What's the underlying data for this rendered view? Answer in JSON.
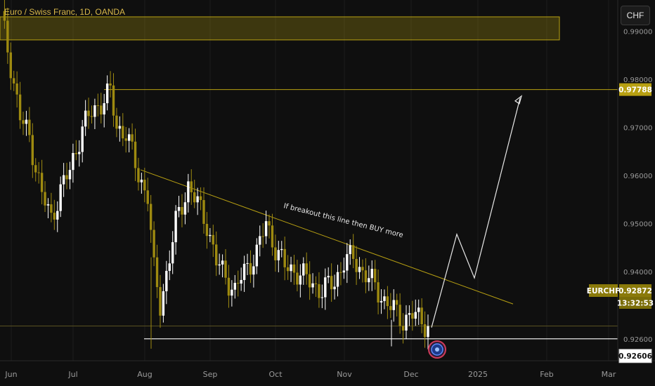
{
  "header": {
    "title": "Euro / Swiss Franc, 1D, OANDA",
    "currency_button": "CHF"
  },
  "colors": {
    "background": "#0f0f0f",
    "gold": "#b8a012",
    "gold_light": "#d9b84a",
    "bull": "#ffffff",
    "bear": "#9e8a10",
    "gridline": "#1e1e1e",
    "text": "#9a9a9a"
  },
  "chart_data": {
    "type": "candlestick",
    "symbol": "EURCHF",
    "x_ticks": [
      "Jun",
      "Jul",
      "Aug",
      "Sep",
      "Oct",
      "Nov",
      "Dec",
      "2025",
      "Feb",
      "Mar"
    ],
    "y_ticks": [
      "0.99000",
      "0.98000",
      "0.97000",
      "0.96000",
      "0.95000",
      "0.94000",
      "0.92600"
    ],
    "ylim": [
      0.9215,
      0.9965
    ],
    "labels": {
      "resistance": "0.97788",
      "current_symbol": "EURCHF",
      "current_price": "0.92872",
      "countdown": "13:32:53",
      "support": "0.92606"
    },
    "supply_zone": [
      0.9882,
      0.993
    ],
    "resistance_level": 0.97788,
    "support_level": 0.92606,
    "current_price": 0.92872,
    "annotation": "If breakout this line then BUY more",
    "trendline": {
      "start": [
        28,
        0.9612
      ],
      "end": [
        146,
        0.9333
      ]
    },
    "projection": [
      [
        140,
        0.9284
      ],
      [
        148,
        0.9478
      ],
      [
        155,
        0.9387
      ],
      [
        168,
        0.9761
      ]
    ],
    "candles_anchor": [
      [
        0,
        0.993
      ],
      [
        3,
        0.983
      ],
      [
        6,
        0.972
      ],
      [
        9,
        0.968
      ],
      [
        13,
        0.956
      ],
      [
        16,
        0.951
      ],
      [
        19,
        0.957
      ],
      [
        22,
        0.961
      ],
      [
        26,
        0.97
      ],
      [
        29,
        0.973
      ],
      [
        33,
        0.976
      ],
      [
        35,
        0.9772
      ],
      [
        37,
        0.97
      ],
      [
        40,
        0.969
      ],
      [
        44,
        0.96
      ],
      [
        47,
        0.956
      ],
      [
        49,
        0.94
      ],
      [
        51,
        0.933
      ],
      [
        54,
        0.943
      ],
      [
        56,
        0.95
      ],
      [
        58,
        0.954
      ],
      [
        60,
        0.958
      ],
      [
        63,
        0.954
      ],
      [
        66,
        0.95
      ],
      [
        69,
        0.942
      ],
      [
        72,
        0.939
      ],
      [
        75,
        0.936
      ],
      [
        78,
        0.94
      ],
      [
        82,
        0.944
      ],
      [
        85,
        0.95
      ],
      [
        88,
        0.945
      ],
      [
        91,
        0.941
      ],
      [
        95,
        0.94
      ],
      [
        99,
        0.938
      ],
      [
        103,
        0.936
      ],
      [
        107,
        0.938
      ],
      [
        110,
        0.942
      ],
      [
        113,
        0.943
      ],
      [
        116,
        0.94
      ],
      [
        120,
        0.937
      ],
      [
        123,
        0.934
      ],
      [
        126,
        0.932
      ],
      [
        129,
        0.93
      ],
      [
        132,
        0.931
      ],
      [
        135,
        0.93
      ],
      [
        137,
        0.9287
      ]
    ]
  }
}
